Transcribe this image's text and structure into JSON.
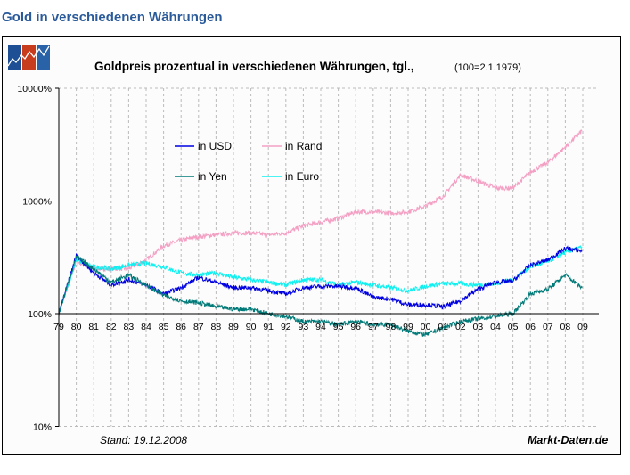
{
  "page_title": "Gold in verschiedenen Währungen",
  "footer": {
    "stand": "Stand: 19.12.2008",
    "source": "Markt-Daten.de"
  },
  "colors": {
    "usd": "#0000e0",
    "rand": "#f4a0c4",
    "yen": "#007a78",
    "euro": "#10f0f0",
    "title": "#2a5a9a"
  },
  "chart_data": {
    "type": "line",
    "title": "Goldpreis prozentual in verschiedenen Währungen, tgl.,",
    "subtitle": "(100=2.1.1979)",
    "y_scale": "log",
    "ylim": [
      10,
      10000
    ],
    "y_ticks": [
      "10000%",
      "1000%",
      "100%",
      "10%"
    ],
    "y_tick_values": [
      10000,
      1000,
      100,
      10
    ],
    "grid": true,
    "legend_position": "top-left",
    "x_tick_labels": [
      "79",
      "80",
      "81",
      "82",
      "83",
      "84",
      "85",
      "86",
      "87",
      "88",
      "89",
      "90",
      "91",
      "92",
      "93",
      "94",
      "95",
      "96",
      "97",
      "98",
      "99",
      "00",
      "01",
      "02",
      "03",
      "04",
      "05",
      "06",
      "07",
      "08",
      "09"
    ],
    "x": [
      1979,
      1980,
      1981,
      1982,
      1983,
      1984,
      1985,
      1986,
      1987,
      1988,
      1989,
      1990,
      1991,
      1992,
      1993,
      1994,
      1995,
      1996,
      1997,
      1998,
      1999,
      2000,
      2001,
      2002,
      2003,
      2004,
      2005,
      2006,
      2007,
      2008,
      2008.96
    ],
    "series": [
      {
        "name": "in USD",
        "color_key": "usd",
        "values": [
          100,
          330,
          230,
          180,
          200,
          180,
          150,
          170,
          210,
          190,
          170,
          170,
          160,
          150,
          170,
          175,
          175,
          170,
          140,
          135,
          120,
          120,
          115,
          130,
          165,
          190,
          195,
          270,
          300,
          380,
          360
        ]
      },
      {
        "name": "in Rand",
        "color_key": "rand",
        "values": [
          100,
          290,
          250,
          250,
          250,
          300,
          400,
          450,
          480,
          500,
          520,
          520,
          500,
          520,
          600,
          650,
          700,
          800,
          800,
          780,
          800,
          900,
          1100,
          1700,
          1500,
          1300,
          1300,
          1800,
          2200,
          3000,
          4200
        ]
      },
      {
        "name": "in Yen",
        "color_key": "yen",
        "values": [
          100,
          320,
          250,
          190,
          220,
          180,
          145,
          130,
          125,
          115,
          110,
          110,
          100,
          95,
          85,
          85,
          80,
          85,
          80,
          80,
          70,
          65,
          75,
          85,
          90,
          95,
          100,
          150,
          165,
          220,
          170
        ]
      },
      {
        "name": "in Euro",
        "color_key": "euro",
        "values": [
          100,
          300,
          260,
          250,
          270,
          280,
          260,
          230,
          220,
          230,
          210,
          200,
          190,
          180,
          200,
          200,
          180,
          190,
          180,
          170,
          160,
          175,
          185,
          185,
          180,
          185,
          200,
          260,
          290,
          350,
          390
        ]
      }
    ]
  }
}
